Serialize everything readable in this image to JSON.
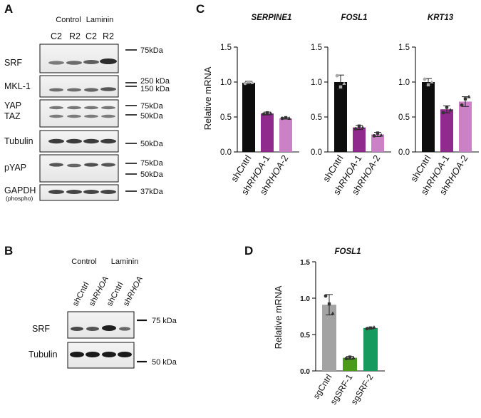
{
  "panels": {
    "A": {
      "letter": "A",
      "groups": [
        "Control",
        "Laminin"
      ],
      "lanes": [
        "C2",
        "R2",
        "C2",
        "R2"
      ],
      "rows": [
        {
          "label": "SRF",
          "markers": [
            "75kDa"
          ]
        },
        {
          "label": "MKL-1",
          "markers": [
            "250 kDa",
            "150 kDa"
          ]
        },
        {
          "label": "YAP",
          "label2": "TAZ",
          "markers": [
            "75kDa",
            "50kDa"
          ]
        },
        {
          "label": "Tubulin",
          "markers": [
            "50kDa"
          ]
        },
        {
          "label": "pYAP",
          "markers": [
            "75kDa",
            "50kDa"
          ]
        },
        {
          "label": "GAPDH",
          "label2": "(phospho)",
          "markers": [
            "37kDa"
          ]
        }
      ]
    },
    "B": {
      "letter": "B",
      "groups": [
        "Control",
        "Laminin"
      ],
      "lanes": [
        {
          "pre": "sh",
          "rest": "Cntrl"
        },
        {
          "pre": "sh",
          "rest": "RHOA"
        },
        {
          "pre": "sh",
          "rest": "Cntrl"
        },
        {
          "pre": "sh",
          "rest": "RHOA"
        }
      ],
      "rows": [
        {
          "label": "SRF",
          "markers": [
            "75 kDa"
          ]
        },
        {
          "label": "Tubulin",
          "markers": [
            "50 kDa"
          ]
        }
      ]
    },
    "C": {
      "letter": "C"
    },
    "D": {
      "letter": "D"
    }
  },
  "chart_data": [
    {
      "type": "bar",
      "title": "SERPINE1",
      "ylabel": "Relative mRNA",
      "ylim": [
        0,
        1.5
      ],
      "yticks": [
        "0.0",
        "0.5",
        "1.0",
        "1.5"
      ],
      "categories": [
        {
          "pre": "sh",
          "gene": "Cntrl",
          "post": ""
        },
        {
          "pre": "sh",
          "gene": "RHOA",
          "post": "-1"
        },
        {
          "pre": "sh",
          "gene": "RHOA",
          "post": "-2"
        }
      ],
      "values": [
        0.99,
        0.55,
        0.48
      ],
      "errors": [
        0.02,
        0.02,
        0.01
      ],
      "points": [
        [
          0.98,
          1.0,
          0.99
        ],
        [
          0.54,
          0.56,
          0.55
        ],
        [
          0.48,
          0.49,
          0.48
        ]
      ],
      "colors": [
        "#0d0d0d",
        "#8a1f86",
        "#c77ac3"
      ]
    },
    {
      "type": "bar",
      "title": "FOSL1",
      "ylim": [
        0,
        1.5
      ],
      "yticks": [
        "0.0",
        "0.5",
        "1.0",
        "1.5"
      ],
      "categories": [
        {
          "pre": "sh",
          "gene": "Cntrl",
          "post": ""
        },
        {
          "pre": "sh",
          "gene": "RHOA",
          "post": "-1"
        },
        {
          "pre": "sh",
          "gene": "RHOA",
          "post": "-2"
        }
      ],
      "values": [
        1.0,
        0.35,
        0.25
      ],
      "errors": [
        0.1,
        0.03,
        0.03
      ],
      "points": [
        [
          1.09,
          0.93,
          0.98
        ],
        [
          0.33,
          0.37,
          0.35
        ],
        [
          0.23,
          0.27,
          0.24
        ]
      ],
      "colors": [
        "#0d0d0d",
        "#8a1f86",
        "#c77ac3"
      ]
    },
    {
      "type": "bar",
      "title": "KRT13",
      "ylim": [
        0,
        1.5
      ],
      "yticks": [
        "0.0",
        "0.5",
        "1.0",
        "1.5"
      ],
      "categories": [
        {
          "pre": "sh",
          "gene": "Cntrl",
          "post": ""
        },
        {
          "pre": "sh",
          "gene": "RHOA",
          "post": "-1"
        },
        {
          "pre": "sh",
          "gene": "RHOA",
          "post": "-2"
        }
      ],
      "values": [
        1.0,
        0.61,
        0.72
      ],
      "errors": [
        0.05,
        0.05,
        0.07
      ],
      "points": [
        [
          1.04,
          0.96,
          1.0
        ],
        [
          0.56,
          0.64,
          0.6
        ],
        [
          0.67,
          0.76,
          0.79
        ]
      ],
      "colors": [
        "#0d0d0d",
        "#8a1f86",
        "#c77ac3"
      ]
    },
    {
      "type": "bar",
      "title": "FOSL1",
      "ylabel": "Relative mRNA",
      "ylim": [
        0,
        1.5
      ],
      "yticks": [
        "0.0",
        "0.5",
        "1.0",
        "1.5"
      ],
      "categories": [
        {
          "pre": "",
          "gene": "sgCntrl",
          "post": ""
        },
        {
          "pre": "",
          "gene": "sgSRF-1",
          "post": ""
        },
        {
          "pre": "",
          "gene": "sgSRF-2",
          "post": ""
        }
      ],
      "values": [
        0.91,
        0.18,
        0.59
      ],
      "errors": [
        0.14,
        0.02,
        0.01
      ],
      "points": [
        [
          1.03,
          0.92,
          0.79
        ],
        [
          0.17,
          0.19,
          0.18
        ],
        [
          0.58,
          0.59,
          0.6
        ]
      ],
      "colors": [
        "#a3a3a3",
        "#4c9a1a",
        "#179a5e"
      ]
    }
  ]
}
